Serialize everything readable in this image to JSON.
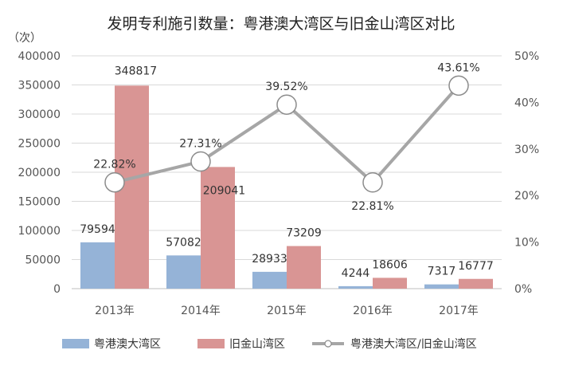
{
  "chart_data": {
    "type": "bar",
    "title": "发明专利施引数量：粤港澳大湾区与旧金山湾区对比",
    "y_unit": "（次）",
    "categories": [
      "2013年",
      "2014年",
      "2015年",
      "2016年",
      "2017年"
    ],
    "ylim": [
      0,
      400000
    ],
    "y_ticks": [
      "0",
      "50000",
      "100000",
      "150000",
      "200000",
      "250000",
      "300000",
      "350000",
      "400000"
    ],
    "y2lim": [
      0,
      0.5
    ],
    "y2_ticks": [
      "0%",
      "10%",
      "20%",
      "30%",
      "40%",
      "50%"
    ],
    "grid": true,
    "legend_position": "bottom",
    "series": [
      {
        "name": "粤港澳大湾区",
        "kind": "bar",
        "color": "#95b3d7",
        "values": [
          79594,
          57082,
          28933,
          4244,
          7317
        ],
        "labels": [
          "79594",
          "57082",
          "28933",
          "4244",
          "7317"
        ]
      },
      {
        "name": "旧金山湾区",
        "kind": "bar",
        "color": "#d99594",
        "values": [
          348817,
          209041,
          73209,
          18606,
          16777
        ],
        "labels": [
          "348817",
          "209041",
          "73209",
          "18606",
          "16777"
        ]
      },
      {
        "name": "粤港澳大湾区/旧金山湾区",
        "kind": "line",
        "axis": "right",
        "color": "#a6a6a6",
        "values": [
          0.2282,
          0.2731,
          0.3952,
          0.2281,
          0.4361
        ],
        "labels": [
          "22.82%",
          "27.31%",
          "39.52%",
          "22.81%",
          "43.61%"
        ]
      }
    ]
  }
}
